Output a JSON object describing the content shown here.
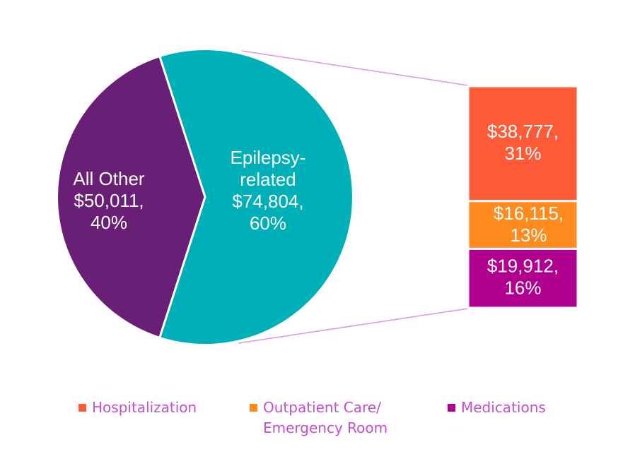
{
  "chart_data": {
    "type": "pie",
    "subtype": "bar-of-pie",
    "title": "",
    "pie": {
      "slices": [
        {
          "name": "Epilepsy-related",
          "label_lines": [
            "Epilepsy-",
            "related",
            "$74,804,",
            "60%"
          ],
          "value": 74804,
          "percent": 60,
          "color": "#00b0b9"
        },
        {
          "name": "All Other",
          "label_lines": [
            "All Other",
            "$50,011,",
            "40%"
          ],
          "value": 50011,
          "percent": 40,
          "color": "#6a1f76"
        }
      ]
    },
    "breakdown": {
      "of": "Epilepsy-related",
      "segments": [
        {
          "name": "Hospitalization",
          "label_lines": [
            "$38,777,",
            "31%"
          ],
          "value": 38777,
          "percent": 31,
          "color": "#ff5b39"
        },
        {
          "name": "Outpatient Care/ Emergency Room",
          "label_lines": [
            "$16,115,",
            "13%"
          ],
          "value": 16115,
          "percent": 13,
          "color": "#ff8b1e"
        },
        {
          "name": "Medications",
          "label_lines": [
            "$19,912,",
            "16%"
          ],
          "value": 19912,
          "percent": 16,
          "color": "#b1008f"
        }
      ]
    },
    "connector_color": "#d996e3",
    "legend": {
      "position": "bottom",
      "entries": [
        {
          "label": "Hospitalization",
          "color": "#ff5b39"
        },
        {
          "label": "Outpatient Care/\nEmergency Room",
          "color": "#ff8b1e"
        },
        {
          "label": "Medications",
          "color": "#b1008f"
        }
      ]
    }
  }
}
